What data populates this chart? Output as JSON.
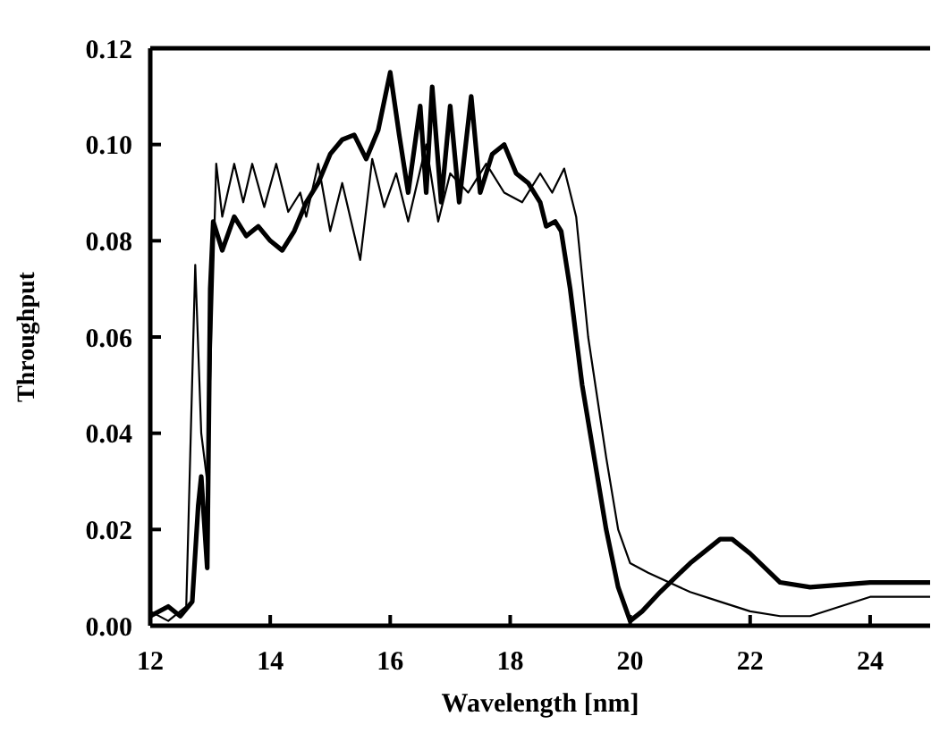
{
  "chart_data": {
    "type": "line",
    "xlabel": "Wavelength [nm]",
    "ylabel": "Throughput",
    "xlim": [
      12,
      25
    ],
    "xticks": [
      12,
      14,
      16,
      18,
      20,
      22,
      24
    ],
    "ylim": [
      0,
      0.12
    ],
    "yticks": [
      {
        "value": 0,
        "label": "0.00"
      },
      0.02,
      0.04,
      0.06,
      0.08,
      {
        "value": 0.1,
        "label": "0.10"
      },
      0.12
    ],
    "grid": false,
    "legend": false,
    "marker": "none",
    "line_style": "solid",
    "series": [
      {
        "color": "#000000",
        "x": [
          12,
          12.3,
          12.5,
          12.7,
          12.8,
          12.85,
          12.95,
          13.0,
          13.05,
          13.2,
          13.4,
          13.6,
          13.8,
          14.0,
          14.2,
          14.4,
          14.6,
          14.8,
          15.0,
          15.2,
          15.4,
          15.6,
          15.8,
          16.0,
          16.15,
          16.3,
          16.5,
          16.6,
          16.7,
          16.85,
          17.0,
          17.15,
          17.35,
          17.5,
          17.7,
          17.9,
          18.1,
          18.3,
          18.5,
          18.6,
          18.75,
          18.85,
          19.0,
          19.2,
          19.4,
          19.6,
          19.8,
          20.0,
          20.2,
          20.5,
          21.0,
          21.5,
          21.7,
          22.0,
          22.5,
          23.0,
          24.0,
          25.0
        ],
        "values": [
          0.002,
          0.004,
          0.002,
          0.005,
          0.025,
          0.031,
          0.012,
          0.07,
          0.084,
          0.078,
          0.085,
          0.081,
          0.083,
          0.08,
          0.078,
          0.082,
          0.088,
          0.092,
          0.098,
          0.101,
          0.102,
          0.097,
          0.103,
          0.115,
          0.102,
          0.09,
          0.108,
          0.09,
          0.112,
          0.088,
          0.108,
          0.088,
          0.11,
          0.09,
          0.098,
          0.1,
          0.094,
          0.092,
          0.088,
          0.083,
          0.084,
          0.082,
          0.07,
          0.05,
          0.035,
          0.02,
          0.008,
          0.001,
          0.003,
          0.007,
          0.013,
          0.018,
          0.018,
          0.015,
          0.009,
          0.008,
          0.009,
          0.009
        ]
      },
      {
        "color": "#000000",
        "x": [
          12,
          12.3,
          12.6,
          12.75,
          12.85,
          12.95,
          13.1,
          13.2,
          13.4,
          13.55,
          13.7,
          13.9,
          14.1,
          14.3,
          14.5,
          14.6,
          14.8,
          15.0,
          15.2,
          15.5,
          15.7,
          15.9,
          16.1,
          16.3,
          16.6,
          16.8,
          17.0,
          17.3,
          17.6,
          17.9,
          18.2,
          18.5,
          18.7,
          18.9,
          19.1,
          19.3,
          19.6,
          19.8,
          20.0,
          20.3,
          21.0,
          21.5,
          22.0,
          22.5,
          23.0,
          23.5,
          24.0,
          25.0
        ],
        "values": [
          0.003,
          0.001,
          0.004,
          0.075,
          0.04,
          0.03,
          0.096,
          0.085,
          0.096,
          0.088,
          0.096,
          0.087,
          0.096,
          0.086,
          0.09,
          0.085,
          0.096,
          0.082,
          0.092,
          0.076,
          0.097,
          0.087,
          0.094,
          0.084,
          0.1,
          0.084,
          0.094,
          0.09,
          0.096,
          0.09,
          0.088,
          0.094,
          0.09,
          0.095,
          0.085,
          0.06,
          0.035,
          0.02,
          0.013,
          0.011,
          0.007,
          0.005,
          0.003,
          0.002,
          0.002,
          0.004,
          0.006,
          0.006
        ]
      }
    ]
  }
}
